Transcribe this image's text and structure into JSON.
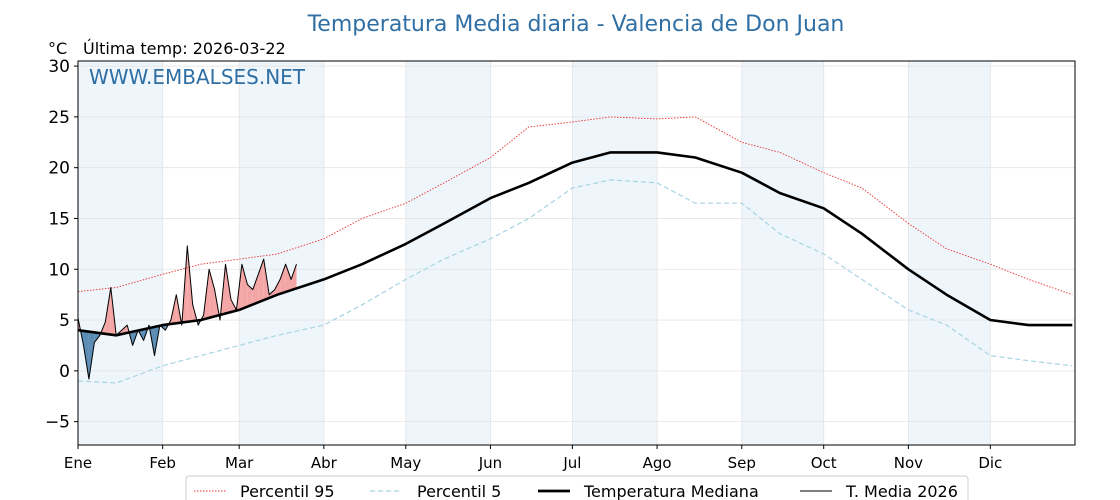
{
  "chart_data": {
    "type": "line",
    "title": "Temperatura Media diaria - Valencia de Don Juan",
    "unit_label": "°C",
    "last_temp_label": "Última temp: 2026-03-22",
    "watermark": "WWW.EMBALSES.NET",
    "ylim": [
      -7.3,
      30.5
    ],
    "yticks": [
      30,
      25,
      20,
      15,
      10,
      5,
      0,
      -5
    ],
    "ytick_labels": [
      "30",
      "25",
      "20",
      "15",
      "10",
      "5",
      "0",
      "−5"
    ],
    "x_start": "2026-01-01",
    "x_end": "2026-12-31",
    "month_labels": [
      "Ene",
      "Feb",
      "Mar",
      "Abr",
      "May",
      "Jun",
      "Jul",
      "Ago",
      "Sep",
      "Oct",
      "Nov",
      "Dic"
    ],
    "grid": true,
    "legend_position": "bottom",
    "colors": {
      "p95": "#e8312f",
      "p5": "#a8d4e2",
      "median": "#000000",
      "current": "#000000",
      "above": "#f4a6a6",
      "below": "#5b8db5",
      "shade": "#eef5fb",
      "title": "#2f6fa4"
    },
    "series": [
      {
        "name": "Percentil 95",
        "style": "dotted",
        "x": [
          "2026-01-01",
          "2026-01-15",
          "2026-02-01",
          "2026-02-15",
          "2026-03-01",
          "2026-03-15",
          "2026-04-01",
          "2026-04-15",
          "2026-05-01",
          "2026-05-15",
          "2026-06-01",
          "2026-06-15",
          "2026-07-01",
          "2026-07-15",
          "2026-08-01",
          "2026-08-15",
          "2026-09-01",
          "2026-09-15",
          "2026-10-01",
          "2026-10-15",
          "2026-11-01",
          "2026-11-15",
          "2026-12-01",
          "2026-12-15",
          "2026-12-31"
        ],
        "y": [
          7.8,
          8.2,
          9.5,
          10.5,
          11.0,
          11.5,
          13.0,
          15.0,
          16.5,
          18.5,
          21.0,
          24.0,
          24.5,
          25.0,
          24.8,
          25.0,
          22.5,
          21.5,
          19.5,
          18.0,
          14.5,
          12.0,
          10.5,
          9.0,
          7.5
        ]
      },
      {
        "name": "Percentil 5",
        "style": "dashed",
        "x": [
          "2026-01-01",
          "2026-01-15",
          "2026-02-01",
          "2026-02-15",
          "2026-03-01",
          "2026-03-15",
          "2026-04-01",
          "2026-04-15",
          "2026-05-01",
          "2026-05-15",
          "2026-06-01",
          "2026-06-15",
          "2026-07-01",
          "2026-07-15",
          "2026-08-01",
          "2026-08-15",
          "2026-09-01",
          "2026-09-15",
          "2026-10-01",
          "2026-10-15",
          "2026-11-01",
          "2026-11-15",
          "2026-12-01",
          "2026-12-15",
          "2026-12-31"
        ],
        "y": [
          -1.0,
          -1.2,
          0.5,
          1.5,
          2.5,
          3.5,
          4.5,
          6.5,
          9.0,
          11.0,
          13.0,
          15.0,
          18.0,
          18.8,
          18.5,
          16.5,
          16.5,
          13.5,
          11.5,
          9.0,
          6.0,
          4.5,
          1.5,
          1.0,
          0.5
        ]
      },
      {
        "name": "Temperatura Mediana",
        "style": "thick",
        "x": [
          "2026-01-01",
          "2026-01-15",
          "2026-02-01",
          "2026-02-15",
          "2026-03-01",
          "2026-03-15",
          "2026-04-01",
          "2026-04-15",
          "2026-05-01",
          "2026-05-15",
          "2026-06-01",
          "2026-06-15",
          "2026-07-01",
          "2026-07-15",
          "2026-08-01",
          "2026-08-15",
          "2026-09-01",
          "2026-09-15",
          "2026-10-01",
          "2026-10-15",
          "2026-11-01",
          "2026-11-15",
          "2026-12-01",
          "2026-12-15",
          "2026-12-31"
        ],
        "y": [
          4.0,
          3.5,
          4.5,
          5.0,
          6.0,
          7.5,
          9.0,
          10.5,
          12.5,
          14.5,
          17.0,
          18.5,
          20.5,
          21.5,
          21.5,
          21.0,
          19.5,
          17.5,
          16.0,
          13.5,
          10.0,
          7.5,
          5.0,
          4.5,
          4.5
        ]
      },
      {
        "name": "T. Media 2026",
        "style": "thin",
        "x": [
          "2026-01-01",
          "2026-01-03",
          "2026-01-05",
          "2026-01-07",
          "2026-01-09",
          "2026-01-11",
          "2026-01-13",
          "2026-01-15",
          "2026-01-17",
          "2026-01-19",
          "2026-01-21",
          "2026-01-23",
          "2026-01-25",
          "2026-01-27",
          "2026-01-29",
          "2026-01-31",
          "2026-02-02",
          "2026-02-04",
          "2026-02-06",
          "2026-02-08",
          "2026-02-10",
          "2026-02-12",
          "2026-02-14",
          "2026-02-16",
          "2026-02-18",
          "2026-02-20",
          "2026-02-22",
          "2026-02-24",
          "2026-02-26",
          "2026-02-28",
          "2026-03-02",
          "2026-03-04",
          "2026-03-06",
          "2026-03-08",
          "2026-03-10",
          "2026-03-12",
          "2026-03-14",
          "2026-03-16",
          "2026-03-18",
          "2026-03-20",
          "2026-03-22"
        ],
        "y": [
          5.2,
          2.5,
          -0.8,
          2.8,
          3.5,
          4.8,
          8.2,
          3.5,
          4.0,
          4.5,
          2.5,
          4.0,
          3.0,
          4.5,
          1.5,
          4.5,
          4.0,
          5.0,
          7.5,
          4.5,
          12.3,
          6.5,
          4.5,
          5.5,
          10.0,
          8.0,
          5.0,
          10.5,
          7.0,
          6.0,
          10.5,
          8.5,
          8.0,
          9.5,
          11.0,
          7.5,
          8.0,
          9.0,
          10.5,
          9.0,
          10.5
        ]
      }
    ]
  }
}
